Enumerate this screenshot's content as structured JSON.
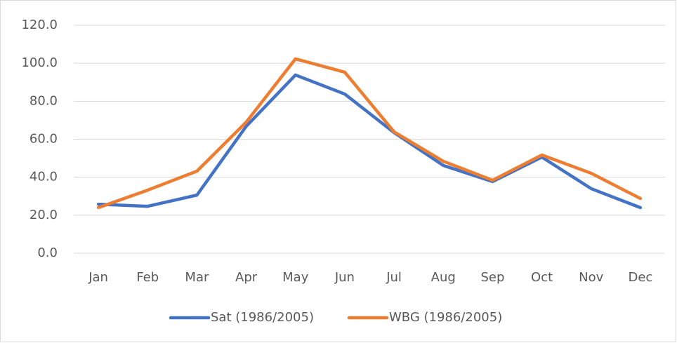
{
  "chart_data": {
    "type": "line",
    "categories": [
      "Jan",
      "Feb",
      "Mar",
      "Apr",
      "May",
      "Jun",
      "Jul",
      "Aug",
      "Sep",
      "Oct",
      "Nov",
      "Dec"
    ],
    "series": [
      {
        "name": "Sat (1986/2005)",
        "color": "#4472c4",
        "values": [
          25.8,
          24.7,
          30.6,
          66.8,
          93.8,
          83.8,
          63.5,
          46.2,
          37.7,
          50.6,
          34.0,
          24.0
        ]
      },
      {
        "name": "WBG (1986/2005)",
        "color": "#ed7d31",
        "values": [
          24.0,
          33.2,
          43.2,
          69.0,
          102.3,
          95.3,
          63.9,
          48.4,
          38.4,
          51.7,
          42.1,
          28.8
        ]
      }
    ],
    "ylim": [
      0,
      120
    ],
    "yticks": [
      {
        "value": 0,
        "label": "0.0"
      },
      {
        "value": 20,
        "label": "20.0"
      },
      {
        "value": 40,
        "label": "40.0"
      },
      {
        "value": 60,
        "label": "60.0"
      },
      {
        "value": 80,
        "label": "80.0"
      },
      {
        "value": 100,
        "label": "100.0"
      },
      {
        "value": 120,
        "label": "120.0"
      }
    ],
    "grid": true,
    "legend": "bottom"
  }
}
